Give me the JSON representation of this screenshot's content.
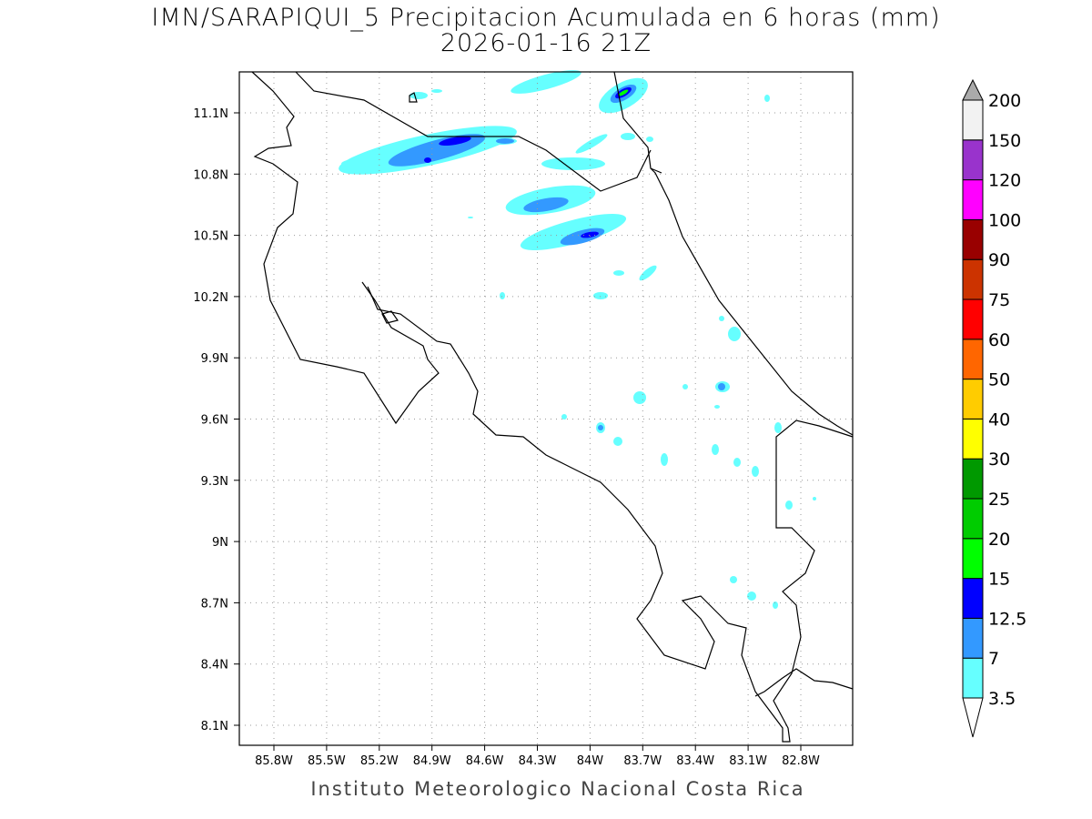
{
  "title": {
    "line1": "IMN/SARAPIQUI_5 Precipitacion Acumulada en 6 horas (mm)",
    "line2": "2026-01-16 21Z"
  },
  "footer": "Instituto Meteorologico Nacional Costa Rica",
  "map": {
    "lon_range": [
      -86.0,
      -82.5
    ],
    "lat_range": [
      8.0,
      11.3
    ],
    "lon_ticks": [
      "85.8W",
      "85.5W",
      "85.2W",
      "84.9W",
      "84.6W",
      "84.3W",
      "84W",
      "83.7W",
      "83.4W",
      "83.1W",
      "82.8W"
    ],
    "lat_ticks": [
      "11.1N",
      "10.8N",
      "10.5N",
      "10.2N",
      "9.9N",
      "9.6N",
      "9.3N",
      "9N",
      "8.7N",
      "8.4N",
      "8.1N"
    ]
  },
  "colorbar": {
    "labels": [
      "3.5",
      "7",
      "12.5",
      "15",
      "20",
      "25",
      "30",
      "40",
      "50",
      "60",
      "75",
      "90",
      "100",
      "120",
      "150",
      "200"
    ],
    "colors": [
      "#66ffff",
      "#3399ff",
      "#0000ff",
      "#00ff00",
      "#00cc00",
      "#009900",
      "#ffff00",
      "#ffcc00",
      "#ff6600",
      "#ff0000",
      "#cc3300",
      "#990000",
      "#ff00ff",
      "#9933cc",
      "#f2f2f2"
    ],
    "under_color": "#ffffff",
    "over_color": "#aaaaaa"
  }
}
